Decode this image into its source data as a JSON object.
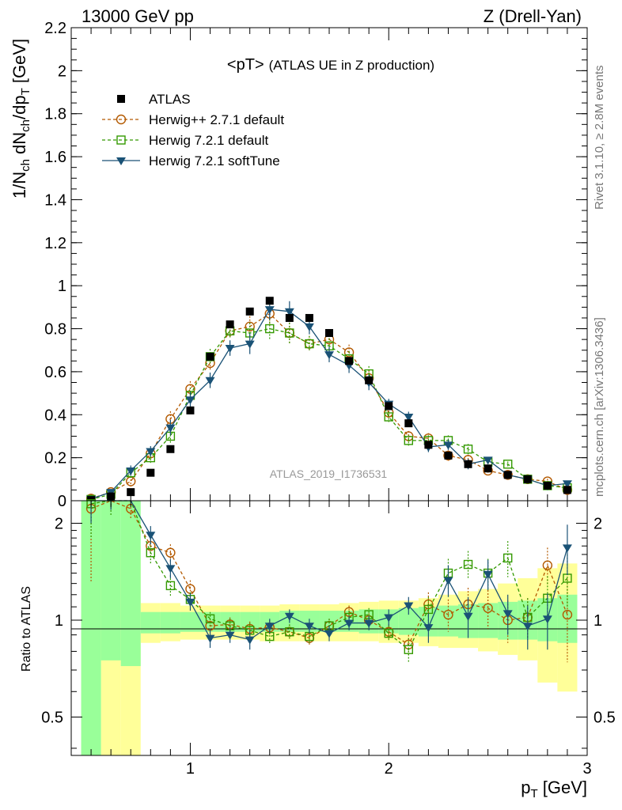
{
  "header": {
    "left": "13000 GeV pp",
    "right": "Z (Drell-Yan)"
  },
  "side": {
    "rivet": "Rivet 3.1.10, ≥ 2.8M events",
    "mcplots": "mcplots.cern.ch [arXiv:1306.3436]"
  },
  "chart_data": [
    {
      "type": "line",
      "title": "<pT> (ATLAS UE in Z production)",
      "title_main": "<pT>",
      "title_sub": "(ATLAS UE in Z production)",
      "ylabel": "1/N_ch dN_ch/dp_T [GeV]",
      "xlim": [
        0.4,
        3.0
      ],
      "ylim": [
        0,
        2.2
      ],
      "yticks": [
        "0",
        "0.2",
        "0.4",
        "0.6",
        "0.8",
        "1",
        "1.2",
        "1.4",
        "1.6",
        "1.8",
        "2",
        "2.2"
      ],
      "watermark": "ATLAS_2019_I1736531",
      "legend_position": "top-left",
      "x": [
        0.5,
        0.6,
        0.7,
        0.8,
        0.9,
        1.0,
        1.1,
        1.2,
        1.3,
        1.4,
        1.5,
        1.6,
        1.7,
        1.8,
        1.9,
        2.0,
        2.1,
        2.2,
        2.3,
        2.4,
        2.5,
        2.6,
        2.7,
        2.8,
        2.9
      ],
      "series": [
        {
          "name": "ATLAS",
          "marker": "filled-square",
          "color": "#000000",
          "values": [
            0.003,
            0.02,
            0.04,
            0.13,
            0.24,
            0.42,
            0.67,
            0.82,
            0.88,
            0.93,
            0.85,
            0.85,
            0.78,
            0.65,
            0.56,
            0.44,
            0.36,
            0.26,
            0.21,
            0.17,
            0.15,
            0.12,
            0.1,
            0.07,
            0.05
          ]
        },
        {
          "name": "Herwig++ 2.7.1 default",
          "marker": "open-circle",
          "color": "#b35900",
          "dash": "4,3",
          "values": [
            0.01,
            0.04,
            0.09,
            0.22,
            0.38,
            0.52,
            0.64,
            0.79,
            0.81,
            0.87,
            0.78,
            0.73,
            0.75,
            0.69,
            0.57,
            0.41,
            0.3,
            0.29,
            0.21,
            0.19,
            0.14,
            0.12,
            0.1,
            0.09,
            0.05
          ]
        },
        {
          "name": "Herwig 7.2.1 default",
          "marker": "open-square",
          "color": "#339900",
          "dash": "4,3",
          "values": [
            0.006,
            0.03,
            0.13,
            0.2,
            0.3,
            0.49,
            0.67,
            0.79,
            0.78,
            0.8,
            0.78,
            0.73,
            0.72,
            0.66,
            0.59,
            0.39,
            0.28,
            0.28,
            0.28,
            0.24,
            0.18,
            0.17,
            0.1,
            0.07,
            0.06
          ]
        },
        {
          "name": "Herwig 7.2.1 softTune",
          "marker": "filled-triangle-down",
          "color": "#1a5276",
          "values": [
            0.008,
            0.04,
            0.14,
            0.23,
            0.34,
            0.47,
            0.56,
            0.71,
            0.73,
            0.89,
            0.88,
            0.81,
            0.68,
            0.63,
            0.55,
            0.45,
            0.39,
            0.25,
            0.26,
            0.17,
            0.19,
            0.12,
            0.1,
            0.07,
            0.08
          ]
        }
      ],
      "error_bars": [
        0,
        0,
        0.02,
        0.02,
        0.03,
        0.03,
        0.03,
        0.03,
        0.04,
        0.04,
        0.04,
        0.03,
        0.03,
        0.03,
        0.03,
        0.02,
        0.02,
        0.02,
        0.02,
        0.02,
        0.01,
        0.01,
        0.01,
        0.01,
        0.01
      ]
    },
    {
      "type": "line",
      "ylabel": "Ratio to ATLAS",
      "xlabel": "p_T [GeV]",
      "xlim": [
        0.4,
        3.0
      ],
      "ylim": [
        0.38,
        2.35
      ],
      "log_y": true,
      "yticks": [
        "0.5",
        "1",
        "2"
      ],
      "xticks": [
        "1",
        "2",
        "3"
      ],
      "x": [
        0.5,
        0.6,
        0.7,
        0.8,
        0.9,
        1.0,
        1.1,
        1.2,
        1.3,
        1.4,
        1.5,
        1.6,
        1.7,
        1.8,
        1.9,
        2.0,
        2.1,
        2.2,
        2.3,
        2.4,
        2.5,
        2.6,
        2.7,
        2.8,
        2.9
      ],
      "band_yellow_low": [
        0.3,
        0.3,
        0.3,
        0.85,
        0.86,
        0.87,
        0.87,
        0.87,
        0.87,
        0.86,
        0.86,
        0.86,
        0.86,
        0.86,
        0.86,
        0.85,
        0.85,
        0.83,
        0.82,
        0.82,
        0.8,
        0.78,
        0.75,
        0.64,
        0.6
      ],
      "band_yellow_high": [
        2.4,
        1.6,
        1.7,
        1.13,
        1.13,
        1.11,
        1.11,
        1.11,
        1.11,
        1.11,
        1.12,
        1.12,
        1.12,
        1.13,
        1.14,
        1.15,
        1.15,
        1.17,
        1.2,
        1.23,
        1.25,
        1.3,
        1.35,
        1.45,
        1.5
      ],
      "band_green_low": [
        0.3,
        0.75,
        0.72,
        0.91,
        0.91,
        0.92,
        0.92,
        0.92,
        0.92,
        0.92,
        0.92,
        0.92,
        0.92,
        0.92,
        0.91,
        0.91,
        0.9,
        0.89,
        0.89,
        0.88,
        0.88,
        0.87,
        0.87,
        0.86,
        0.85
      ],
      "band_green_high": [
        2.4,
        2.4,
        2.4,
        1.06,
        1.06,
        1.06,
        1.06,
        1.06,
        1.06,
        1.06,
        1.07,
        1.07,
        1.07,
        1.07,
        1.08,
        1.08,
        1.09,
        1.1,
        1.11,
        1.12,
        1.13,
        1.14,
        1.15,
        1.17,
        1.2
      ],
      "series": [
        {
          "name": "Herwig++ 2.7.1 default",
          "color": "#b35900",
          "dash": "4,3",
          "marker": "open-circle",
          "values": [
            2.22,
            2.5,
            2.22,
            1.7,
            1.62,
            1.25,
            0.96,
            0.97,
            0.94,
            0.95,
            0.92,
            0.88,
            0.96,
            1.06,
            1.0,
            0.92,
            0.84,
            1.12,
            1.04,
            1.12,
            1.09,
            1.0,
            1.02,
            1.48,
            1.04
          ],
          "errors": [
            0.9,
            0.3,
            0.15,
            0.12,
            0.1,
            0.08,
            0.05,
            0.05,
            0.05,
            0.05,
            0.05,
            0.05,
            0.05,
            0.05,
            0.05,
            0.05,
            0.06,
            0.1,
            0.12,
            0.14,
            0.15,
            0.15,
            0.15,
            0.2,
            0.3
          ]
        },
        {
          "name": "Herwig 7.2.1 default",
          "color": "#339900",
          "dash": "4,3",
          "marker": "open-square",
          "values": [
            2.3,
            2.4,
            2.4,
            1.62,
            1.28,
            1.16,
            1.01,
            0.96,
            0.93,
            0.89,
            0.92,
            0.89,
            0.96,
            1.02,
            1.04,
            0.91,
            0.81,
            1.08,
            1.4,
            1.49,
            1.4,
            1.56,
            1.02,
            1.17,
            1.35
          ],
          "errors": [
            0.5,
            0.3,
            0.15,
            0.12,
            0.1,
            0.06,
            0.05,
            0.05,
            0.05,
            0.05,
            0.05,
            0.05,
            0.05,
            0.05,
            0.05,
            0.05,
            0.07,
            0.1,
            0.15,
            0.15,
            0.15,
            0.2,
            0.15,
            0.2,
            0.25
          ]
        },
        {
          "name": "Herwig 7.2.1 softTune",
          "color": "#1a5276",
          "dash": "",
          "marker": "filled-triangle-down",
          "values": [
            2.5,
            2.5,
            2.5,
            1.84,
            1.45,
            1.14,
            0.88,
            0.9,
            0.87,
            0.96,
            1.03,
            0.96,
            0.91,
            0.98,
            0.98,
            1.02,
            1.11,
            0.95,
            1.33,
            1.03,
            1.39,
            1.05,
            0.96,
            1.01,
            1.68
          ],
          "errors": [
            0.5,
            0.3,
            0.15,
            0.12,
            0.1,
            0.07,
            0.06,
            0.05,
            0.06,
            0.05,
            0.05,
            0.05,
            0.05,
            0.05,
            0.05,
            0.06,
            0.07,
            0.1,
            0.15,
            0.15,
            0.15,
            0.15,
            0.15,
            0.2,
            0.3
          ]
        }
      ]
    }
  ]
}
